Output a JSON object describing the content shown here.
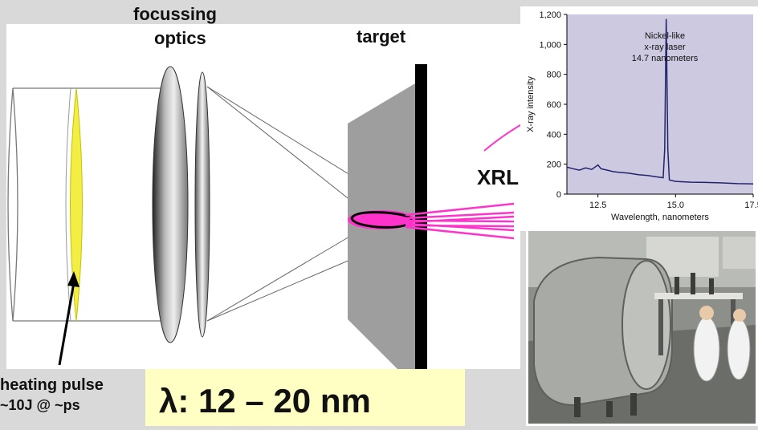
{
  "labels": {
    "focussing_optics_line1": "focussing",
    "focussing_optics_line2": "optics",
    "target": "target",
    "xrl": "XRL",
    "heating_pulse_line1": "heating pulse",
    "heating_pulse_line2": "~10J @ ~ps",
    "wavelength_range": "λ: 12 – 20 nm"
  },
  "colors": {
    "background": "#d9d9d9",
    "pulse_yellow": "#f2ee44",
    "xray_beam": "#ff33cc",
    "spectrum_line": "#22236e",
    "highlight_box": "#ffffc4"
  },
  "chart_data": {
    "type": "line",
    "title": "",
    "xlabel": "Wavelength, nanometers",
    "ylabel": "X-ray intensity",
    "xlim": [
      11.5,
      17.5
    ],
    "ylim": [
      0,
      1200
    ],
    "xticks": [
      "12.5",
      "15.0",
      "17.5"
    ],
    "yticks": [
      "0",
      "200",
      "400",
      "600",
      "800",
      "1,000",
      "1,200"
    ],
    "annotation": [
      "Nickel-like",
      "x-ray laser",
      "14.7 nanometers"
    ],
    "grid": false,
    "series": [
      {
        "x": [
          11.5,
          11.7,
          11.9,
          12.1,
          12.3,
          12.5,
          12.6,
          12.8,
          13.0,
          13.2,
          13.5,
          13.8,
          14.1,
          14.4,
          14.6,
          14.65,
          14.7,
          14.75,
          14.8,
          15.0,
          15.5,
          16.0,
          16.5,
          17.0,
          17.5
        ],
        "y": [
          180,
          170,
          160,
          175,
          165,
          195,
          170,
          160,
          150,
          145,
          140,
          130,
          125,
          115,
          110,
          300,
          1170,
          300,
          95,
          85,
          80,
          78,
          75,
          70,
          68
        ]
      }
    ]
  }
}
